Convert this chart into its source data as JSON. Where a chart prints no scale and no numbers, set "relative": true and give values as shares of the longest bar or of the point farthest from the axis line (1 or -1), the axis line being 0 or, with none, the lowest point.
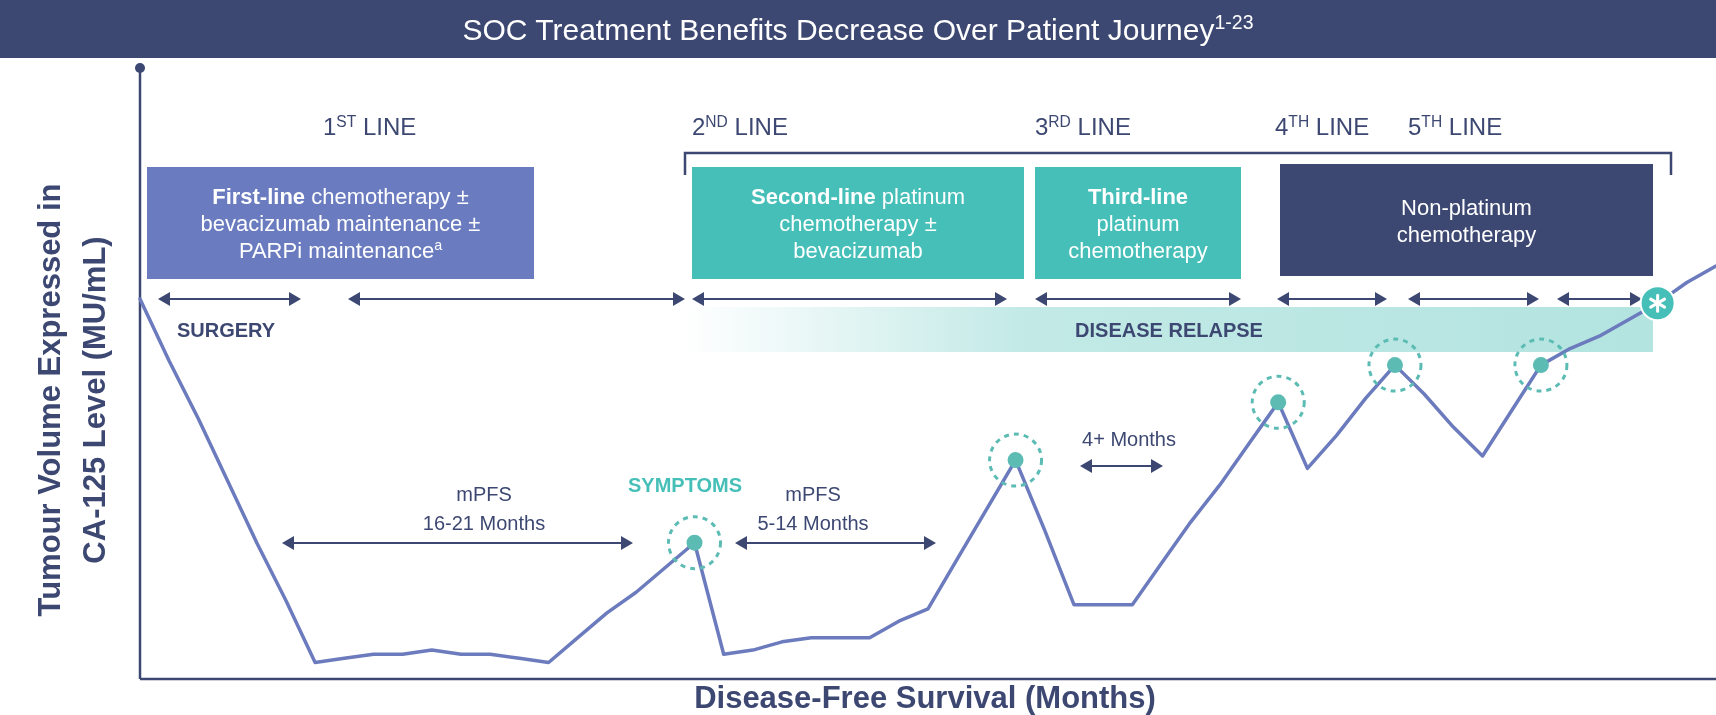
{
  "chart_data": {
    "type": "line",
    "title": "SOC Treatment Benefits Decrease Over Patient Journey$^{1-23}$",
    "xlabel": "Disease-Free Survival (Months)",
    "ylabel": "Tumour Volume Expressed in CA-125 Level (MU/mL)",
    "relative": true,
    "categories": [
      null,
      null,
      null,
      null,
      null,
      null,
      null,
      null,
      null,
      null,
      null,
      null,
      null,
      null,
      null,
      null,
      null,
      null,
      null,
      null,
      null,
      null,
      null,
      null,
      null,
      null,
      null,
      null,
      null,
      null,
      null,
      null,
      null,
      null,
      null,
      null,
      null,
      null,
      null,
      null,
      null,
      null,
      null,
      null,
      null,
      null,
      null,
      null,
      null,
      null,
      null,
      null,
      null,
      null,
      null
    ],
    "series": [
      {
        "color": "#6b7bbd",
        "values": [
          0.92,
          0.77,
          0.63,
          0.48,
          0.33,
          0.19,
          0.04,
          0.05,
          0.06,
          0.06,
          0.07,
          0.06,
          0.06,
          0.05,
          0.04,
          0.1,
          0.16,
          0.21,
          0.27,
          0.33,
          0.06,
          0.07,
          0.09,
          0.1,
          0.1,
          0.1,
          0.14,
          0.17,
          0.29,
          0.41,
          0.53,
          0.36,
          0.18,
          0.18,
          0.18,
          0.28,
          0.38,
          0.47,
          0.57,
          0.67,
          0.51,
          0.59,
          0.68,
          0.76,
          0.69,
          0.61,
          0.54,
          0.65,
          0.76,
          0.8,
          0.83,
          0.87,
          0.91,
          0.96,
          1
        ]
      }
    ],
    "annotations": [
      "1$^{ST}$ LINE",
      "2$^{ND}$ LINE",
      "3$^{RD}$ LINE",
      "4$^{TH}$ LINE",
      "5$^{TH}$ LINE",
      "First-line chemotherapy ± bevacizumab maintenance ± PARPi maintenance$^{a}$",
      "Second-line platinum chemotherapy ± bevacizumab",
      "Third-line platinum chemotherapy",
      "Non-platinum chemotherapy",
      "SURGERY",
      "DISEASE RELAPSE",
      "mPFS",
      "16-21 Months",
      "SYMPTOMS",
      "mPFS",
      "5-14 Months",
      "4+ Months"
    ]
  }
}
